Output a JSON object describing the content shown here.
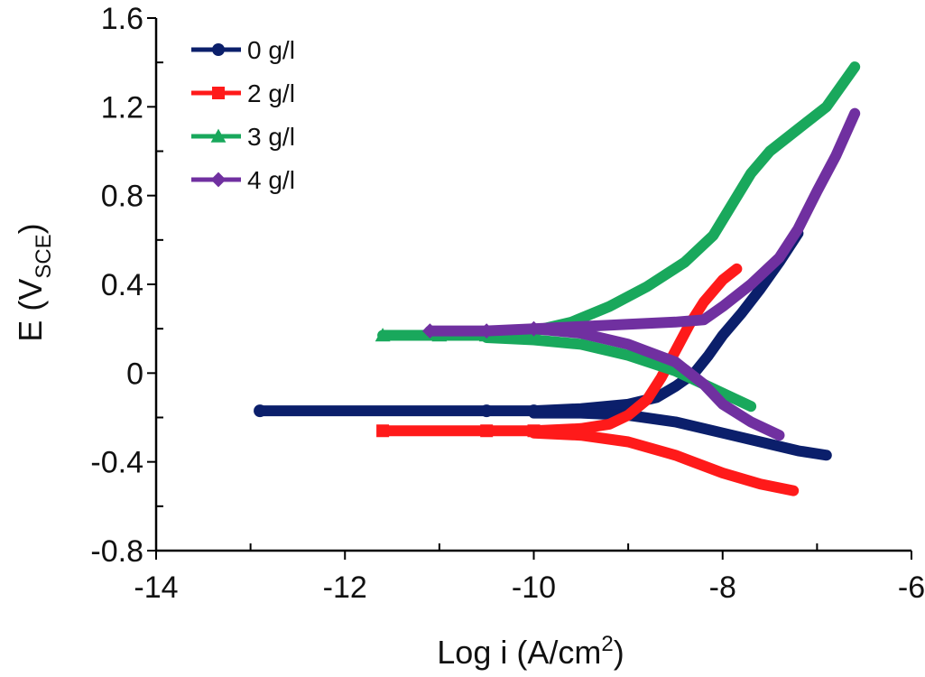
{
  "chart_data": {
    "type": "line",
    "title": "",
    "xlabel": "Log i (A/cm",
    "xlabel_sup": "2",
    "xlabel_suffix": ")",
    "ylabel": "E (V",
    "ylabel_sub": "SCE",
    "ylabel_suffix": ")",
    "xlim": [
      -14,
      -6
    ],
    "ylim": [
      -0.8,
      1.6
    ],
    "x_ticks": [
      -14,
      -12,
      -10,
      -8,
      -6
    ],
    "x_tick_labels": [
      "-14",
      "-12",
      "-10",
      "-8",
      "-6"
    ],
    "y_ticks": [
      -0.8,
      -0.4,
      0,
      0.4,
      0.8,
      1.2,
      1.6
    ],
    "y_tick_labels": [
      "-0.8",
      "-0.4",
      "0",
      "0.4",
      "0.8",
      "1.2",
      "1.6"
    ],
    "grid": false,
    "legend_position": "top-left",
    "series": [
      {
        "name": "0 g/l",
        "color": "#0b1f6b",
        "marker": "circle",
        "anodic": [
          [
            -12.9,
            -0.17
          ],
          [
            -10.5,
            -0.17
          ],
          [
            -10.0,
            -0.17
          ],
          [
            -9.5,
            -0.16
          ],
          [
            -9.0,
            -0.14
          ],
          [
            -8.7,
            -0.11
          ],
          [
            -8.5,
            -0.06
          ],
          [
            -8.3,
            0.0
          ],
          [
            -8.15,
            0.08
          ],
          [
            -8.0,
            0.17
          ],
          [
            -7.8,
            0.27
          ],
          [
            -7.6,
            0.38
          ],
          [
            -7.4,
            0.5
          ],
          [
            -7.2,
            0.63
          ]
        ],
        "cathodic": [
          [
            -10.0,
            -0.18
          ],
          [
            -9.5,
            -0.18
          ],
          [
            -9.0,
            -0.19
          ],
          [
            -8.5,
            -0.22
          ],
          [
            -8.0,
            -0.27
          ],
          [
            -7.5,
            -0.32
          ],
          [
            -7.2,
            -0.35
          ],
          [
            -6.9,
            -0.37
          ]
        ]
      },
      {
        "name": "2 g/l",
        "color": "#ff1a1a",
        "marker": "square",
        "anodic": [
          [
            -11.6,
            -0.26
          ],
          [
            -10.5,
            -0.26
          ],
          [
            -10.0,
            -0.26
          ],
          [
            -9.5,
            -0.25
          ],
          [
            -9.2,
            -0.23
          ],
          [
            -9.0,
            -0.19
          ],
          [
            -8.8,
            -0.12
          ],
          [
            -8.65,
            -0.02
          ],
          [
            -8.5,
            0.1
          ],
          [
            -8.35,
            0.22
          ],
          [
            -8.2,
            0.32
          ],
          [
            -8.0,
            0.42
          ],
          [
            -7.85,
            0.47
          ]
        ],
        "cathodic": [
          [
            -10.0,
            -0.27
          ],
          [
            -9.5,
            -0.28
          ],
          [
            -9.0,
            -0.31
          ],
          [
            -8.5,
            -0.37
          ],
          [
            -8.0,
            -0.45
          ],
          [
            -7.6,
            -0.5
          ],
          [
            -7.25,
            -0.53
          ]
        ]
      },
      {
        "name": "3 g/l",
        "color": "#19a85c",
        "marker": "triangle",
        "anodic": [
          [
            -11.6,
            0.17
          ],
          [
            -11.0,
            0.17
          ],
          [
            -10.5,
            0.17
          ],
          [
            -10.0,
            0.19
          ],
          [
            -9.6,
            0.23
          ],
          [
            -9.2,
            0.3
          ],
          [
            -8.8,
            0.39
          ],
          [
            -8.4,
            0.5
          ],
          [
            -8.1,
            0.62
          ],
          [
            -7.9,
            0.76
          ],
          [
            -7.7,
            0.9
          ],
          [
            -7.5,
            1.0
          ],
          [
            -7.2,
            1.1
          ],
          [
            -6.9,
            1.2
          ],
          [
            -6.6,
            1.38
          ]
        ],
        "cathodic": [
          [
            -10.5,
            0.16
          ],
          [
            -10.0,
            0.15
          ],
          [
            -9.5,
            0.13
          ],
          [
            -9.0,
            0.08
          ],
          [
            -8.5,
            0.01
          ],
          [
            -8.0,
            -0.09
          ],
          [
            -7.7,
            -0.15
          ]
        ]
      },
      {
        "name": "4 g/l",
        "color": "#7030a0",
        "marker": "diamond",
        "anodic": [
          [
            -11.1,
            0.19
          ],
          [
            -10.5,
            0.19
          ],
          [
            -10.0,
            0.2
          ],
          [
            -9.5,
            0.21
          ],
          [
            -9.0,
            0.22
          ],
          [
            -8.5,
            0.23
          ],
          [
            -8.2,
            0.24
          ],
          [
            -8.0,
            0.3
          ],
          [
            -7.7,
            0.4
          ],
          [
            -7.4,
            0.52
          ],
          [
            -7.2,
            0.65
          ],
          [
            -7.0,
            0.82
          ],
          [
            -6.8,
            0.98
          ],
          [
            -6.6,
            1.17
          ]
        ],
        "cathodic": [
          [
            -10.0,
            0.2
          ],
          [
            -9.5,
            0.18
          ],
          [
            -9.0,
            0.13
          ],
          [
            -8.5,
            0.05
          ],
          [
            -8.2,
            -0.05
          ],
          [
            -8.0,
            -0.14
          ],
          [
            -7.7,
            -0.22
          ],
          [
            -7.4,
            -0.28
          ]
        ]
      }
    ]
  }
}
